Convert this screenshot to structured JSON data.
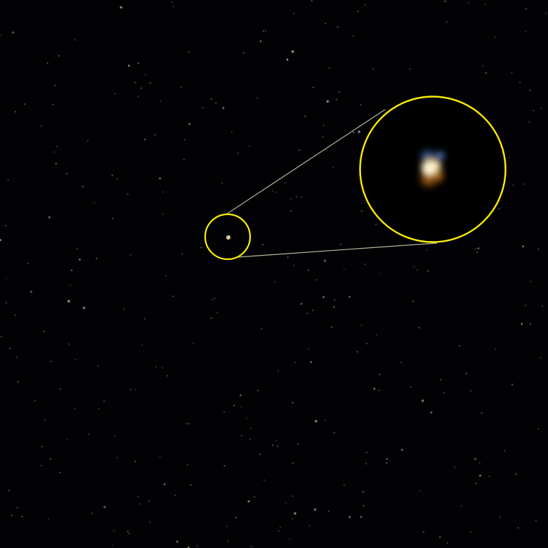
{
  "image": {
    "subject": "star-field",
    "background_color": "#020204",
    "highlight_color": "#ffee00",
    "connector_color": "#d9d6b8",
    "target_colors": {
      "core": "#fff3cc",
      "warm": "#e08a1e",
      "cool": "#4a8fd8"
    },
    "star_colors": [
      "#ffffff",
      "#cfe0ff",
      "#ffe9c4",
      "#ffd0b0",
      "#bcd4ff",
      "#fff6e0"
    ]
  }
}
